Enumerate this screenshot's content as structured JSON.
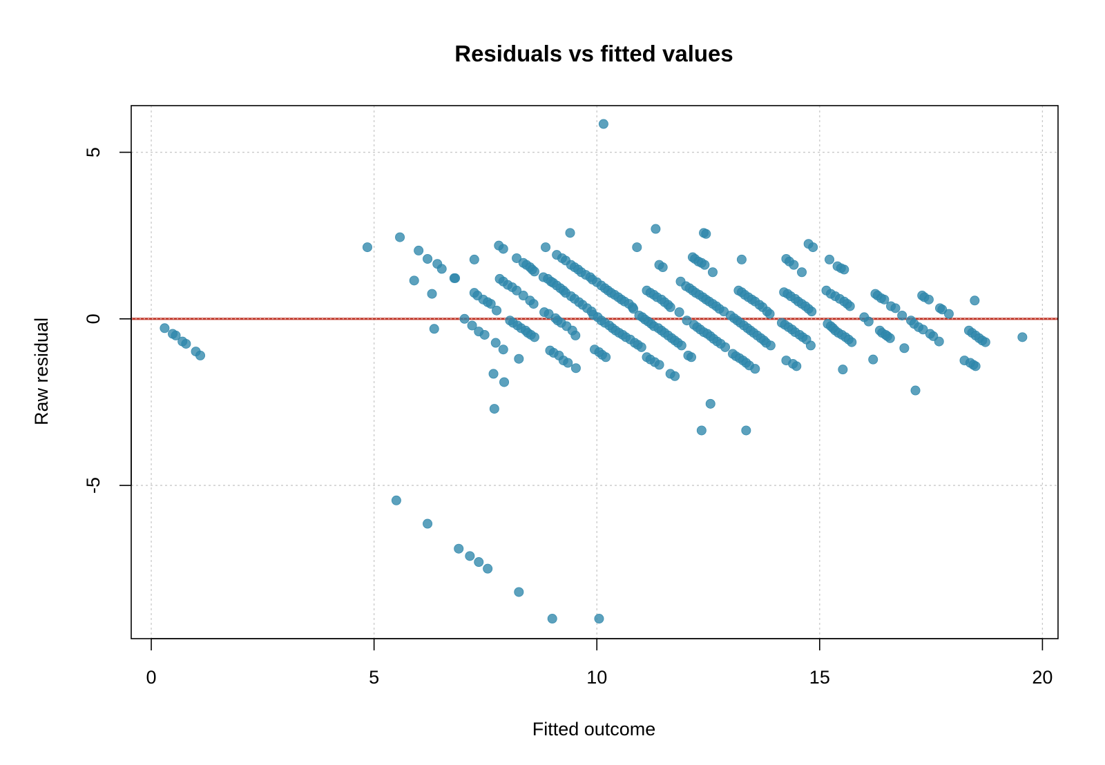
{
  "chart_data": {
    "type": "scatter",
    "title": "Residuals vs fitted values",
    "xlabel": "Fitted outcome",
    "ylabel": "Raw residual",
    "xlim": [
      -0.45,
      20.35
    ],
    "ylim": [
      -9.6,
      6.4
    ],
    "xticks": [
      0,
      5,
      10,
      15,
      20
    ],
    "xtick_labels": [
      "0",
      "5",
      "10",
      "15",
      "20"
    ],
    "yticks": [
      -5,
      0,
      5
    ],
    "ytick_labels": [
      "-5",
      "0",
      "5"
    ],
    "grid": true,
    "reference_line": {
      "y": 0,
      "color": "#c0392b"
    },
    "point_color": "#2e86ab",
    "points": [
      [
        0.3,
        -0.28
      ],
      [
        0.48,
        -0.45
      ],
      [
        0.55,
        -0.5
      ],
      [
        0.7,
        -0.68
      ],
      [
        0.78,
        -0.75
      ],
      [
        1.0,
        -0.98
      ],
      [
        1.1,
        -1.1
      ],
      [
        4.85,
        2.15
      ],
      [
        5.5,
        -5.45
      ],
      [
        5.58,
        2.45
      ],
      [
        5.9,
        1.15
      ],
      [
        6.0,
        2.05
      ],
      [
        6.2,
        1.8
      ],
      [
        6.2,
        -6.15
      ],
      [
        6.3,
        0.75
      ],
      [
        6.35,
        -0.3
      ],
      [
        6.42,
        1.65
      ],
      [
        6.52,
        1.5
      ],
      [
        6.8,
        1.22
      ],
      [
        6.82,
        1.22
      ],
      [
        6.9,
        -6.9
      ],
      [
        7.03,
        0.0
      ],
      [
        7.15,
        -7.12
      ],
      [
        7.2,
        -0.2
      ],
      [
        7.25,
        1.78
      ],
      [
        7.25,
        0.78
      ],
      [
        7.32,
        0.7
      ],
      [
        7.35,
        -7.3
      ],
      [
        7.35,
        -0.38
      ],
      [
        7.45,
        0.58
      ],
      [
        7.48,
        -0.48
      ],
      [
        7.55,
        0.5
      ],
      [
        7.55,
        -7.5
      ],
      [
        7.62,
        0.45
      ],
      [
        7.68,
        -1.65
      ],
      [
        7.7,
        -2.7
      ],
      [
        7.73,
        -0.72
      ],
      [
        7.75,
        0.25
      ],
      [
        7.8,
        2.2
      ],
      [
        7.82,
        1.2
      ],
      [
        7.9,
        2.1
      ],
      [
        7.9,
        1.12
      ],
      [
        7.9,
        -0.92
      ],
      [
        7.92,
        -1.9
      ],
      [
        8.0,
        1.02
      ],
      [
        8.05,
        -0.05
      ],
      [
        8.1,
        0.95
      ],
      [
        8.12,
        -0.12
      ],
      [
        8.2,
        1.82
      ],
      [
        8.2,
        0.85
      ],
      [
        8.22,
        -0.2
      ],
      [
        8.25,
        -8.2
      ],
      [
        8.25,
        -1.2
      ],
      [
        8.3,
        -0.28
      ],
      [
        8.35,
        1.68
      ],
      [
        8.35,
        0.7
      ],
      [
        8.4,
        -0.35
      ],
      [
        8.42,
        1.62
      ],
      [
        8.45,
        -0.42
      ],
      [
        8.5,
        1.55
      ],
      [
        8.5,
        0.55
      ],
      [
        8.52,
        -0.48
      ],
      [
        8.55,
        1.48
      ],
      [
        8.58,
        0.45
      ],
      [
        8.6,
        1.42
      ],
      [
        8.6,
        -0.55
      ],
      [
        8.8,
        1.25
      ],
      [
        8.82,
        0.2
      ],
      [
        8.85,
        2.15
      ],
      [
        8.9,
        1.2
      ],
      [
        8.92,
        0.15
      ],
      [
        8.95,
        -0.95
      ],
      [
        8.97,
        1.12
      ],
      [
        9.0,
        -9.0
      ],
      [
        9.02,
        1.08
      ],
      [
        9.03,
        -1.02
      ],
      [
        9.07,
        0.02
      ],
      [
        9.1,
        1.92
      ],
      [
        9.1,
        1.0
      ],
      [
        9.12,
        -0.05
      ],
      [
        9.15,
        -1.1
      ],
      [
        9.18,
        0.92
      ],
      [
        9.2,
        -0.12
      ],
      [
        9.22,
        1.82
      ],
      [
        9.25,
        0.85
      ],
      [
        9.25,
        -1.25
      ],
      [
        9.3,
        1.75
      ],
      [
        9.3,
        0.78
      ],
      [
        9.32,
        -0.22
      ],
      [
        9.35,
        -1.32
      ],
      [
        9.4,
        2.58
      ],
      [
        9.42,
        1.62
      ],
      [
        9.42,
        0.68
      ],
      [
        9.45,
        -0.35
      ],
      [
        9.5,
        1.55
      ],
      [
        9.5,
        0.6
      ],
      [
        9.52,
        -0.5
      ],
      [
        9.53,
        -1.48
      ],
      [
        9.58,
        1.48
      ],
      [
        9.6,
        0.5
      ],
      [
        9.65,
        1.4
      ],
      [
        9.68,
        0.42
      ],
      [
        9.75,
        1.32
      ],
      [
        9.78,
        0.32
      ],
      [
        9.85,
        1.25
      ],
      [
        9.88,
        0.22
      ],
      [
        9.9,
        1.18
      ],
      [
        9.92,
        0.12
      ],
      [
        9.95,
        -0.92
      ],
      [
        10.0,
        1.1
      ],
      [
        10.02,
        0.05
      ],
      [
        10.05,
        -9.0
      ],
      [
        10.05,
        -1.0
      ],
      [
        10.1,
        1.0
      ],
      [
        10.1,
        -0.05
      ],
      [
        10.12,
        -1.08
      ],
      [
        10.15,
        5.85
      ],
      [
        10.18,
        0.92
      ],
      [
        10.18,
        -0.12
      ],
      [
        10.2,
        -1.15
      ],
      [
        10.25,
        0.85
      ],
      [
        10.28,
        -0.2
      ],
      [
        10.32,
        0.78
      ],
      [
        10.35,
        -0.28
      ],
      [
        10.4,
        0.72
      ],
      [
        10.42,
        -0.35
      ],
      [
        10.48,
        0.65
      ],
      [
        10.5,
        -0.42
      ],
      [
        10.55,
        0.58
      ],
      [
        10.58,
        -0.48
      ],
      [
        10.62,
        0.52
      ],
      [
        10.65,
        -0.55
      ],
      [
        10.72,
        0.45
      ],
      [
        10.75,
        -0.62
      ],
      [
        10.8,
        0.35
      ],
      [
        10.82,
        0.3
      ],
      [
        10.85,
        -0.72
      ],
      [
        10.9,
        2.15
      ],
      [
        10.92,
        -0.78
      ],
      [
        10.95,
        0.1
      ],
      [
        11.0,
        -0.85
      ],
      [
        11.02,
        0.05
      ],
      [
        11.08,
        -0.02
      ],
      [
        11.12,
        0.85
      ],
      [
        11.12,
        -1.15
      ],
      [
        11.15,
        -0.08
      ],
      [
        11.2,
        0.78
      ],
      [
        11.2,
        -1.22
      ],
      [
        11.22,
        -0.15
      ],
      [
        11.28,
        0.72
      ],
      [
        11.28,
        -0.22
      ],
      [
        11.3,
        -1.3
      ],
      [
        11.32,
        2.7
      ],
      [
        11.35,
        0.65
      ],
      [
        11.38,
        -0.28
      ],
      [
        11.4,
        1.62
      ],
      [
        11.4,
        -1.38
      ],
      [
        11.45,
        0.58
      ],
      [
        11.45,
        -0.35
      ],
      [
        11.48,
        1.55
      ],
      [
        11.52,
        0.5
      ],
      [
        11.52,
        -0.42
      ],
      [
        11.6,
        0.42
      ],
      [
        11.6,
        -0.5
      ],
      [
        11.65,
        0.35
      ],
      [
        11.68,
        -0.58
      ],
      [
        11.65,
        -1.65
      ],
      [
        11.75,
        -0.65
      ],
      [
        11.75,
        -1.72
      ],
      [
        11.82,
        -0.72
      ],
      [
        11.85,
        0.2
      ],
      [
        11.88,
        1.12
      ],
      [
        11.9,
        -0.8
      ],
      [
        12.0,
        0.98
      ],
      [
        12.02,
        -0.05
      ],
      [
        12.05,
        -1.1
      ],
      [
        12.08,
        0.92
      ],
      [
        12.12,
        -1.15
      ],
      [
        12.15,
        1.85
      ],
      [
        12.15,
        0.85
      ],
      [
        12.18,
        -0.18
      ],
      [
        12.2,
        1.8
      ],
      [
        12.22,
        0.78
      ],
      [
        12.25,
        -0.25
      ],
      [
        12.28,
        1.72
      ],
      [
        12.3,
        0.72
      ],
      [
        12.32,
        -0.32
      ],
      [
        12.35,
        1.68
      ],
      [
        12.35,
        -3.35
      ],
      [
        12.38,
        0.65
      ],
      [
        12.4,
        2.58
      ],
      [
        12.4,
        -0.4
      ],
      [
        12.42,
        1.62
      ],
      [
        12.45,
        2.55
      ],
      [
        12.45,
        0.58
      ],
      [
        12.48,
        -0.45
      ],
      [
        12.52,
        0.52
      ],
      [
        12.55,
        -0.52
      ],
      [
        12.55,
        -2.55
      ],
      [
        12.6,
        1.4
      ],
      [
        12.6,
        0.45
      ],
      [
        12.62,
        -0.6
      ],
      [
        12.68,
        0.38
      ],
      [
        12.7,
        -0.68
      ],
      [
        12.75,
        0.3
      ],
      [
        12.78,
        -0.75
      ],
      [
        12.85,
        0.22
      ],
      [
        12.88,
        -0.85
      ],
      [
        13.0,
        0.1
      ],
      [
        13.05,
        -1.05
      ],
      [
        13.08,
        0.02
      ],
      [
        13.12,
        -1.12
      ],
      [
        13.15,
        -0.05
      ],
      [
        13.18,
        0.85
      ],
      [
        13.2,
        -1.18
      ],
      [
        13.22,
        -0.12
      ],
      [
        13.25,
        1.78
      ],
      [
        13.25,
        0.8
      ],
      [
        13.28,
        -1.25
      ],
      [
        13.3,
        -0.2
      ],
      [
        13.32,
        0.72
      ],
      [
        13.35,
        -1.32
      ],
      [
        13.35,
        -3.35
      ],
      [
        13.38,
        -0.28
      ],
      [
        13.4,
        0.65
      ],
      [
        13.42,
        -1.4
      ],
      [
        13.45,
        -0.35
      ],
      [
        13.48,
        0.58
      ],
      [
        13.52,
        -0.42
      ],
      [
        13.55,
        0.52
      ],
      [
        13.55,
        -1.5
      ],
      [
        13.6,
        -0.5
      ],
      [
        13.65,
        0.42
      ],
      [
        13.68,
        -0.58
      ],
      [
        13.72,
        0.35
      ],
      [
        13.75,
        -0.65
      ],
      [
        13.8,
        -0.72
      ],
      [
        13.82,
        0.22
      ],
      [
        13.88,
        0.15
      ],
      [
        13.9,
        -0.8
      ],
      [
        14.15,
        -0.12
      ],
      [
        14.2,
        0.8
      ],
      [
        14.22,
        -0.18
      ],
      [
        14.25,
        1.8
      ],
      [
        14.25,
        -1.25
      ],
      [
        14.28,
        0.75
      ],
      [
        14.3,
        -0.25
      ],
      [
        14.32,
        1.72
      ],
      [
        14.35,
        0.68
      ],
      [
        14.38,
        -0.32
      ],
      [
        14.4,
        -1.35
      ],
      [
        14.42,
        1.62
      ],
      [
        14.45,
        0.6
      ],
      [
        14.45,
        -0.4
      ],
      [
        14.48,
        -1.42
      ],
      [
        14.52,
        0.52
      ],
      [
        14.55,
        -0.48
      ],
      [
        14.6,
        1.4
      ],
      [
        14.6,
        0.45
      ],
      [
        14.62,
        -0.55
      ],
      [
        14.68,
        0.38
      ],
      [
        14.7,
        -0.62
      ],
      [
        14.75,
        2.25
      ],
      [
        14.75,
        0.3
      ],
      [
        14.8,
        -0.8
      ],
      [
        14.82,
        0.22
      ],
      [
        14.85,
        2.15
      ],
      [
        15.15,
        0.85
      ],
      [
        15.18,
        -0.15
      ],
      [
        15.22,
        1.78
      ],
      [
        15.25,
        0.75
      ],
      [
        15.25,
        -0.22
      ],
      [
        15.3,
        -0.28
      ],
      [
        15.35,
        0.68
      ],
      [
        15.35,
        -0.35
      ],
      [
        15.4,
        1.58
      ],
      [
        15.42,
        -0.42
      ],
      [
        15.45,
        0.6
      ],
      [
        15.48,
        1.52
      ],
      [
        15.5,
        -0.48
      ],
      [
        15.52,
        -1.52
      ],
      [
        15.55,
        1.48
      ],
      [
        15.55,
        0.52
      ],
      [
        15.58,
        -0.55
      ],
      [
        15.62,
        0.45
      ],
      [
        15.65,
        -0.62
      ],
      [
        15.68,
        0.38
      ],
      [
        15.72,
        -0.7
      ],
      [
        16.0,
        0.05
      ],
      [
        16.1,
        -0.08
      ],
      [
        16.2,
        -1.22
      ],
      [
        16.25,
        0.75
      ],
      [
        16.3,
        0.7
      ],
      [
        16.35,
        -0.35
      ],
      [
        16.38,
        0.62
      ],
      [
        16.4,
        -0.42
      ],
      [
        16.45,
        0.58
      ],
      [
        16.48,
        -0.48
      ],
      [
        16.52,
        -0.52
      ],
      [
        16.58,
        -0.58
      ],
      [
        16.6,
        0.38
      ],
      [
        16.7,
        0.32
      ],
      [
        16.85,
        0.1
      ],
      [
        16.9,
        -0.88
      ],
      [
        17.05,
        -0.05
      ],
      [
        17.12,
        -0.15
      ],
      [
        17.15,
        -2.15
      ],
      [
        17.22,
        -0.25
      ],
      [
        17.3,
        0.7
      ],
      [
        17.32,
        -0.32
      ],
      [
        17.35,
        0.65
      ],
      [
        17.45,
        0.58
      ],
      [
        17.48,
        -0.45
      ],
      [
        17.55,
        -0.52
      ],
      [
        17.68,
        -0.68
      ],
      [
        17.7,
        0.32
      ],
      [
        17.75,
        0.28
      ],
      [
        17.9,
        0.15
      ],
      [
        18.25,
        -1.25
      ],
      [
        18.35,
        -0.35
      ],
      [
        18.38,
        -1.32
      ],
      [
        18.42,
        -0.42
      ],
      [
        18.45,
        -1.38
      ],
      [
        18.48,
        0.55
      ],
      [
        18.5,
        -1.42
      ],
      [
        18.5,
        -0.5
      ],
      [
        18.58,
        -0.58
      ],
      [
        18.65,
        -0.65
      ],
      [
        18.72,
        -0.7
      ],
      [
        19.55,
        -0.55
      ]
    ]
  }
}
